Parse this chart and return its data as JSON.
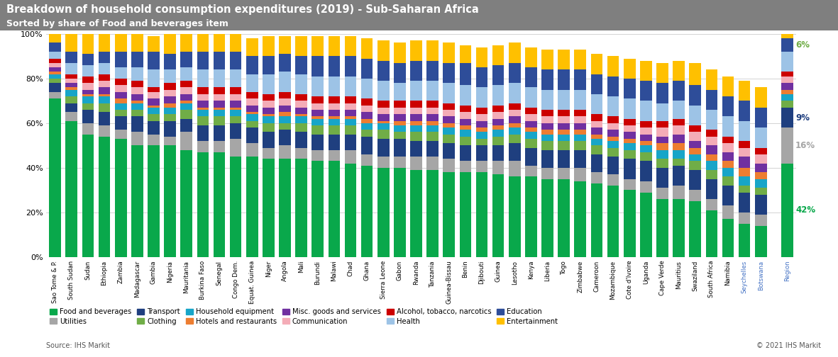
{
  "title": "Breakdown of household consumption expenditures (2019) - Sub-Saharan Africa",
  "subtitle": "Sorted by share of Food and beverages item",
  "source": "Source: IHS Markit",
  "copyright": "© 2021 IHS Markit",
  "title_bg_color": "#7f7f7f",
  "title_text_color": "#ffffff",
  "countries": [
    "Sao Tome & P.",
    "South Sudan",
    "Sudan",
    "Ethiopia",
    "Zambia",
    "Madagascar",
    "Gambia",
    "Nigeria",
    "Mauritania",
    "Burkina Faso",
    "Senegal",
    "Congo Dem.",
    "Equat. Guinea",
    "Niger",
    "Angola",
    "Mali",
    "Burundi",
    "Malawi",
    "Chad",
    "Ghana",
    "Sierra Leone",
    "Gabon",
    "Rwanda",
    "Tanzania",
    "Guinea-Bissau",
    "Benin",
    "Djibouti",
    "Guinea",
    "Lesotho",
    "Kenya",
    "Liberia",
    "Togo",
    "Zimbabwe",
    "Cameroon",
    "Mozambique",
    "Cote d'Ivoire",
    "Uganda",
    "Cape Verde",
    "Mauritius",
    "Swaziland",
    "South Africa",
    "Namibia",
    "Seychelles",
    "Botswana",
    "Region"
  ],
  "colors": {
    "Food and beverages": "#09a84b",
    "Utilities": "#a6a6a6",
    "Transport": "#1f3f7f",
    "Clothing": "#70ad47",
    "Household equipment": "#17a5c8",
    "Hotels and restaurants": "#ed7d31",
    "Misc. goods and services": "#7030a0",
    "Communication": "#f4acb7",
    "Alcohol, tobacco, narcotics": "#cc0000",
    "Health": "#9dc3e6",
    "Education": "#2e4d99",
    "Entertainment": "#ffc000"
  },
  "stack_order": [
    "Food and beverages",
    "Utilities",
    "Transport",
    "Clothing",
    "Household equipment",
    "Hotels and restaurants",
    "Misc. goods and services",
    "Communication",
    "Alcohol, tobacco, narcotics",
    "Health",
    "Education",
    "Entertainment"
  ],
  "legend_order": [
    "Food and beverages",
    "Utilities",
    "Transport",
    "Clothing",
    "Household equipment",
    "Hotels and restaurants",
    "Misc. goods and services",
    "Communication",
    "Alcohol, tobacco, narcotics",
    "Health",
    "Education",
    "Entertainment"
  ],
  "data": {
    "Food and beverages": [
      71,
      61,
      55,
      54,
      53,
      50,
      50,
      50,
      48,
      47,
      47,
      45,
      45,
      44,
      44,
      44,
      43,
      43,
      42,
      41,
      40,
      40,
      39,
      39,
      38,
      38,
      38,
      37,
      36,
      36,
      35,
      35,
      34,
      33,
      32,
      30,
      29,
      26,
      26,
      25,
      21,
      17,
      15,
      14,
      42
    ],
    "Utilities": [
      3,
      4,
      5,
      5,
      4,
      6,
      5,
      4,
      8,
      5,
      5,
      8,
      6,
      5,
      6,
      5,
      5,
      5,
      6,
      5,
      5,
      5,
      6,
      6,
      6,
      5,
      5,
      6,
      7,
      5,
      5,
      5,
      6,
      5,
      5,
      5,
      5,
      5,
      6,
      5,
      5,
      6,
      5,
      5,
      16
    ],
    "Transport": [
      4,
      4,
      6,
      6,
      6,
      7,
      6,
      7,
      6,
      7,
      7,
      7,
      7,
      7,
      7,
      7,
      7,
      7,
      7,
      8,
      8,
      8,
      7,
      7,
      7,
      7,
      7,
      7,
      8,
      8,
      8,
      8,
      8,
      8,
      8,
      9,
      9,
      9,
      9,
      9,
      9,
      9,
      9,
      9,
      9
    ],
    "Clothing": [
      2,
      3,
      3,
      4,
      3,
      3,
      3,
      3,
      4,
      4,
      4,
      3,
      3,
      4,
      3,
      4,
      4,
      4,
      4,
      3,
      4,
      3,
      4,
      4,
      4,
      4,
      3,
      4,
      4,
      4,
      4,
      4,
      4,
      4,
      4,
      4,
      4,
      4,
      3,
      4,
      4,
      4,
      3,
      3,
      3
    ],
    "Household equipment": [
      2,
      3,
      3,
      3,
      3,
      3,
      3,
      3,
      3,
      3,
      3,
      3,
      3,
      3,
      3,
      3,
      3,
      3,
      3,
      3,
      3,
      3,
      3,
      3,
      3,
      3,
      3,
      3,
      3,
      3,
      3,
      3,
      3,
      3,
      3,
      3,
      3,
      4,
      4,
      3,
      4,
      4,
      4,
      4,
      3
    ],
    "Hotels and restaurants": [
      1,
      1,
      1,
      1,
      2,
      1,
      1,
      2,
      1,
      1,
      1,
      1,
      1,
      1,
      2,
      1,
      1,
      1,
      1,
      2,
      1,
      2,
      2,
      2,
      2,
      2,
      2,
      2,
      2,
      2,
      2,
      2,
      2,
      2,
      2,
      2,
      2,
      3,
      3,
      3,
      3,
      3,
      4,
      3,
      2
    ],
    "Misc. goods and services": [
      2,
      2,
      2,
      3,
      3,
      3,
      3,
      3,
      3,
      3,
      3,
      3,
      3,
      3,
      3,
      3,
      3,
      3,
      3,
      3,
      3,
      3,
      3,
      3,
      3,
      3,
      3,
      3,
      3,
      3,
      3,
      3,
      3,
      3,
      3,
      3,
      3,
      3,
      4,
      3,
      4,
      4,
      5,
      4,
      3
    ],
    "Communication": [
      2,
      2,
      3,
      3,
      3,
      3,
      3,
      3,
      3,
      3,
      3,
      3,
      3,
      3,
      3,
      3,
      3,
      3,
      3,
      3,
      3,
      3,
      3,
      3,
      3,
      3,
      3,
      3,
      3,
      3,
      3,
      3,
      3,
      3,
      3,
      3,
      3,
      4,
      4,
      4,
      4,
      4,
      4,
      4,
      3
    ],
    "Alcohol, tobacco, narcotics": [
      2,
      2,
      3,
      3,
      3,
      3,
      2,
      3,
      3,
      3,
      3,
      3,
      3,
      3,
      3,
      3,
      3,
      3,
      3,
      3,
      3,
      3,
      3,
      3,
      3,
      3,
      3,
      3,
      3,
      3,
      3,
      3,
      3,
      3,
      3,
      3,
      3,
      3,
      3,
      3,
      3,
      3,
      3,
      3,
      2
    ],
    "Health": [
      3,
      5,
      5,
      5,
      5,
      6,
      8,
      6,
      6,
      8,
      8,
      8,
      8,
      9,
      9,
      9,
      9,
      9,
      9,
      9,
      9,
      8,
      9,
      9,
      9,
      9,
      9,
      9,
      9,
      9,
      9,
      9,
      9,
      9,
      9,
      9,
      9,
      8,
      8,
      9,
      9,
      9,
      9,
      9,
      9
    ],
    "Education": [
      4,
      5,
      5,
      5,
      7,
      7,
      8,
      7,
      7,
      8,
      8,
      8,
      8,
      8,
      8,
      8,
      9,
      9,
      9,
      9,
      9,
      9,
      9,
      9,
      9,
      10,
      9,
      9,
      9,
      9,
      9,
      9,
      9,
      9,
      9,
      9,
      9,
      9,
      9,
      9,
      9,
      9,
      9,
      9,
      6
    ],
    "Entertainment": [
      4,
      8,
      9,
      8,
      8,
      8,
      7,
      9,
      8,
      8,
      8,
      8,
      8,
      9,
      8,
      9,
      9,
      9,
      9,
      9,
      9,
      9,
      9,
      9,
      9,
      8,
      9,
      9,
      9,
      9,
      9,
      9,
      9,
      9,
      9,
      9,
      9,
      9,
      9,
      10,
      9,
      9,
      9,
      9,
      5
    ]
  },
  "region_annotations": [
    {
      "label": "42%",
      "category": "Food and beverages",
      "color": "#09a84b"
    },
    {
      "label": "16%",
      "category": "Utilities",
      "color": "#a6a6a6"
    },
    {
      "label": "9%",
      "category": "Transport",
      "color": "#1f3f7f"
    },
    {
      "label": "6%",
      "category": "Education",
      "color": "#70ad47"
    }
  ],
  "figsize": [
    11.81,
    5.04
  ],
  "dpi": 100
}
